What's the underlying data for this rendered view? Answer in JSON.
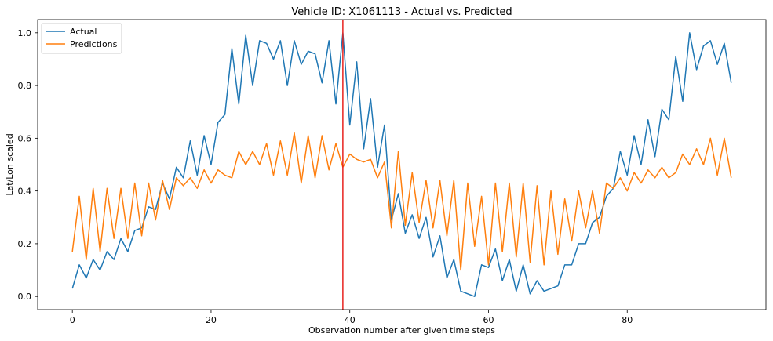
{
  "chart_data": {
    "type": "line",
    "title": "Vehicle ID: X1061113 - Actual vs. Predicted",
    "xlabel": "Observation number after given time steps",
    "ylabel": "Lat/Lon scaled",
    "xlim": [
      -5,
      100
    ],
    "ylim": [
      -0.05,
      1.05
    ],
    "xticks": [
      0,
      20,
      40,
      60,
      80
    ],
    "yticks": [
      0.0,
      0.2,
      0.4,
      0.6,
      0.8,
      1.0
    ],
    "xtick_labels": [
      "0",
      "20",
      "40",
      "60",
      "80"
    ],
    "ytick_labels": [
      "0.0",
      "0.2",
      "0.4",
      "0.6",
      "0.8",
      "1.0"
    ],
    "grid": false,
    "legend_position": "top-left",
    "vline": {
      "x": 39,
      "color": "#e8231f"
    },
    "series": [
      {
        "name": "Actual",
        "color": "#1f77b4",
        "x": [
          0,
          1,
          2,
          3,
          4,
          5,
          6,
          7,
          8,
          9,
          10,
          11,
          12,
          13,
          14,
          15,
          16,
          17,
          18,
          19,
          20,
          21,
          22,
          23,
          24,
          25,
          26,
          27,
          28,
          29,
          30,
          31,
          32,
          33,
          34,
          35,
          36,
          37,
          38,
          39,
          40,
          41,
          42,
          43,
          44,
          45,
          46,
          47,
          48,
          49,
          50,
          51,
          52,
          53,
          54,
          55,
          56,
          57,
          58,
          59,
          60,
          61,
          62,
          63,
          64,
          65,
          66,
          67,
          68,
          69,
          70,
          71,
          72,
          73,
          74,
          75,
          76,
          77,
          78,
          79,
          80,
          81,
          82,
          83,
          84,
          85,
          86,
          87,
          88,
          89,
          90,
          91,
          92,
          93,
          94,
          95
        ],
        "values": [
          0.03,
          0.12,
          0.07,
          0.14,
          0.1,
          0.17,
          0.14,
          0.22,
          0.17,
          0.25,
          0.26,
          0.34,
          0.33,
          0.43,
          0.37,
          0.49,
          0.45,
          0.59,
          0.46,
          0.61,
          0.5,
          0.66,
          0.69,
          0.94,
          0.73,
          0.99,
          0.8,
          0.97,
          0.96,
          0.9,
          0.97,
          0.8,
          0.97,
          0.88,
          0.93,
          0.92,
          0.81,
          0.97,
          0.73,
          1.0,
          0.65,
          0.89,
          0.56,
          0.75,
          0.49,
          0.65,
          0.29,
          0.39,
          0.24,
          0.31,
          0.22,
          0.3,
          0.15,
          0.23,
          0.07,
          0.14,
          0.02,
          0.01,
          0.0,
          0.12,
          0.11,
          0.18,
          0.06,
          0.14,
          0.02,
          0.12,
          0.01,
          0.06,
          0.02,
          0.03,
          0.04,
          0.12,
          0.12,
          0.2,
          0.2,
          0.28,
          0.3,
          0.38,
          0.41,
          0.55,
          0.46,
          0.61,
          0.5,
          0.67,
          0.53,
          0.71,
          0.67,
          0.91,
          0.74,
          1.0,
          0.86,
          0.95,
          0.97,
          0.88,
          0.96,
          0.81
        ]
      },
      {
        "name": "Predictions",
        "color": "#ff7f0e",
        "x": [
          0,
          1,
          2,
          3,
          4,
          5,
          6,
          7,
          8,
          9,
          10,
          11,
          12,
          13,
          14,
          15,
          16,
          17,
          18,
          19,
          20,
          21,
          22,
          23,
          24,
          25,
          26,
          27,
          28,
          29,
          30,
          31,
          32,
          33,
          34,
          35,
          36,
          37,
          38,
          39,
          40,
          41,
          42,
          43,
          44,
          45,
          46,
          47,
          48,
          49,
          50,
          51,
          52,
          53,
          54,
          55,
          56,
          57,
          58,
          59,
          60,
          61,
          62,
          63,
          64,
          65,
          66,
          67,
          68,
          69,
          70,
          71,
          72,
          73,
          74,
          75,
          76,
          77,
          78,
          79,
          80,
          81,
          82,
          83,
          84,
          85,
          86,
          87,
          88,
          89,
          90,
          91,
          92,
          93,
          94,
          95
        ],
        "values": [
          0.17,
          0.38,
          0.14,
          0.41,
          0.17,
          0.41,
          0.22,
          0.41,
          0.22,
          0.43,
          0.23,
          0.43,
          0.29,
          0.44,
          0.33,
          0.45,
          0.42,
          0.45,
          0.41,
          0.48,
          0.43,
          0.48,
          0.46,
          0.45,
          0.55,
          0.5,
          0.55,
          0.5,
          0.58,
          0.46,
          0.59,
          0.46,
          0.62,
          0.43,
          0.61,
          0.45,
          0.61,
          0.48,
          0.58,
          0.49,
          0.54,
          0.52,
          0.51,
          0.52,
          0.45,
          0.51,
          0.26,
          0.55,
          0.27,
          0.47,
          0.28,
          0.44,
          0.26,
          0.44,
          0.23,
          0.44,
          0.1,
          0.43,
          0.19,
          0.38,
          0.12,
          0.43,
          0.17,
          0.43,
          0.15,
          0.43,
          0.13,
          0.42,
          0.12,
          0.4,
          0.16,
          0.37,
          0.21,
          0.4,
          0.26,
          0.4,
          0.24,
          0.43,
          0.41,
          0.45,
          0.4,
          0.47,
          0.43,
          0.48,
          0.45,
          0.49,
          0.45,
          0.47,
          0.54,
          0.5,
          0.56,
          0.5,
          0.6,
          0.46,
          0.6,
          0.45
        ]
      }
    ]
  }
}
